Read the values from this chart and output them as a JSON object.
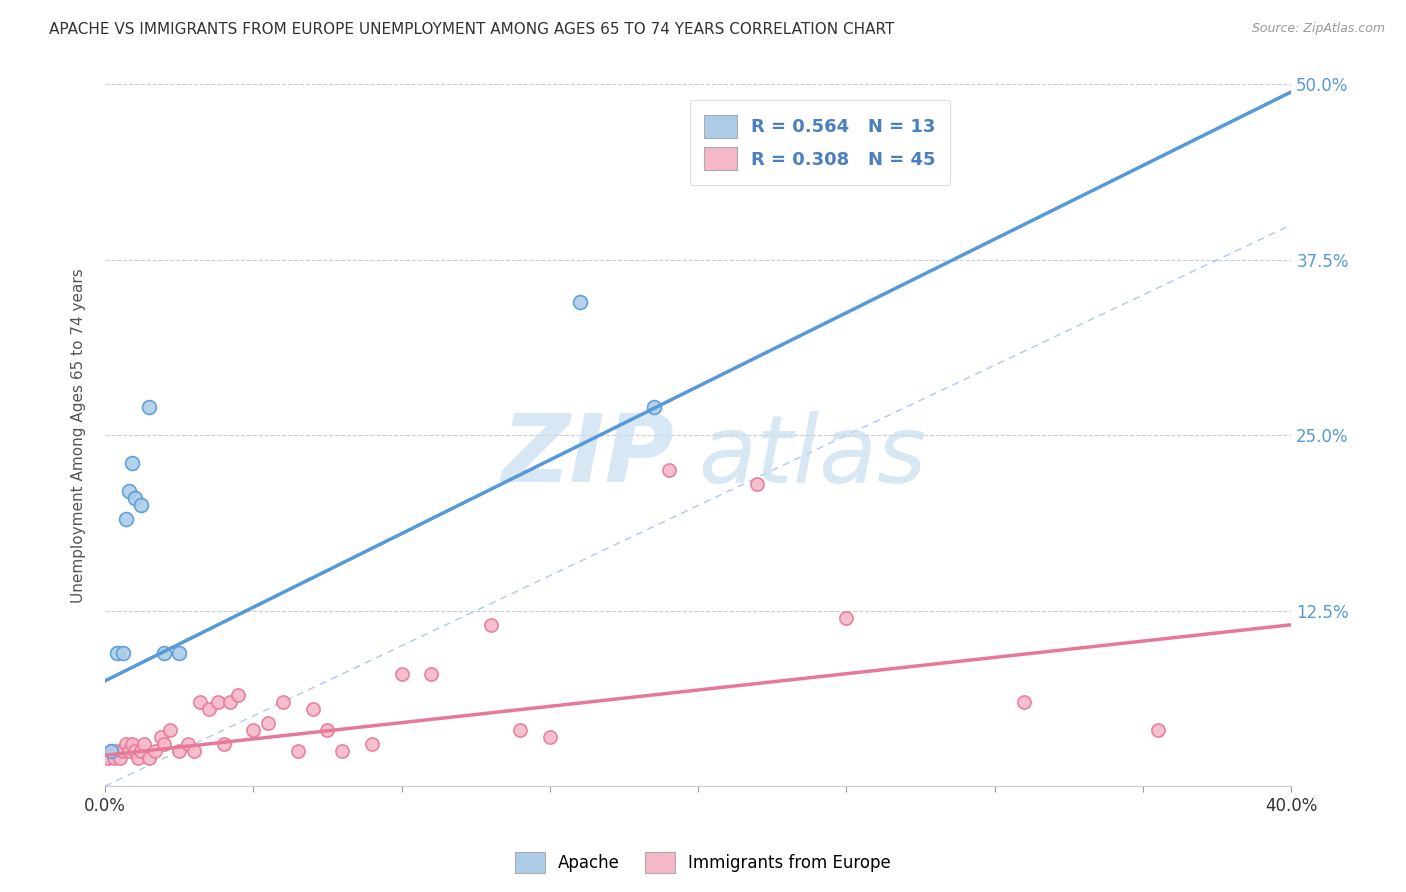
{
  "title": "APACHE VS IMMIGRANTS FROM EUROPE UNEMPLOYMENT AMONG AGES 65 TO 74 YEARS CORRELATION CHART",
  "source": "Source: ZipAtlas.com",
  "ylabel": "Unemployment Among Ages 65 to 74 years",
  "xlim": [
    0.0,
    0.4
  ],
  "ylim": [
    0.0,
    0.5
  ],
  "xticks": [
    0.0,
    0.05,
    0.1,
    0.15,
    0.2,
    0.25,
    0.3,
    0.35,
    0.4
  ],
  "yticks_right": [
    0.0,
    0.125,
    0.25,
    0.375,
    0.5
  ],
  "yticklabels_right": [
    "",
    "12.5%",
    "25.0%",
    "37.5%",
    "50.0%"
  ],
  "apache_color": "#aecce8",
  "immigrants_color": "#f5b8c8",
  "apache_line_color": "#5599d8",
  "immigrants_line_color": "#e87898",
  "diagonal_color": "#99bbee",
  "watermark_zip": "ZIP",
  "watermark_atlas": "atlas",
  "apache_scatter_x": [
    0.002,
    0.004,
    0.006,
    0.007,
    0.008,
    0.009,
    0.01,
    0.012,
    0.015,
    0.02,
    0.025,
    0.16,
    0.185
  ],
  "apache_scatter_y": [
    0.025,
    0.095,
    0.095,
    0.19,
    0.21,
    0.23,
    0.205,
    0.2,
    0.27,
    0.095,
    0.095,
    0.345,
    0.27
  ],
  "immigrants_scatter_x": [
    0.001,
    0.002,
    0.003,
    0.004,
    0.005,
    0.006,
    0.007,
    0.008,
    0.009,
    0.01,
    0.011,
    0.012,
    0.013,
    0.015,
    0.017,
    0.019,
    0.02,
    0.022,
    0.025,
    0.028,
    0.03,
    0.032,
    0.035,
    0.038,
    0.04,
    0.042,
    0.045,
    0.05,
    0.055,
    0.06,
    0.065,
    0.07,
    0.075,
    0.08,
    0.09,
    0.1,
    0.11,
    0.13,
    0.14,
    0.15,
    0.19,
    0.22,
    0.25,
    0.31,
    0.355
  ],
  "immigrants_scatter_y": [
    0.02,
    0.025,
    0.02,
    0.025,
    0.02,
    0.025,
    0.03,
    0.025,
    0.03,
    0.025,
    0.02,
    0.025,
    0.03,
    0.02,
    0.025,
    0.035,
    0.03,
    0.04,
    0.025,
    0.03,
    0.025,
    0.06,
    0.055,
    0.06,
    0.03,
    0.06,
    0.065,
    0.04,
    0.045,
    0.06,
    0.025,
    0.055,
    0.04,
    0.025,
    0.03,
    0.08,
    0.08,
    0.115,
    0.04,
    0.035,
    0.225,
    0.215,
    0.12,
    0.06,
    0.04
  ],
  "apache_line_x0": 0.0,
  "apache_line_y0": 0.075,
  "apache_line_x1": 0.405,
  "apache_line_y1": 0.5,
  "imm_line_x0": 0.0,
  "imm_line_y0": 0.022,
  "imm_line_x1": 0.4,
  "imm_line_y1": 0.115
}
